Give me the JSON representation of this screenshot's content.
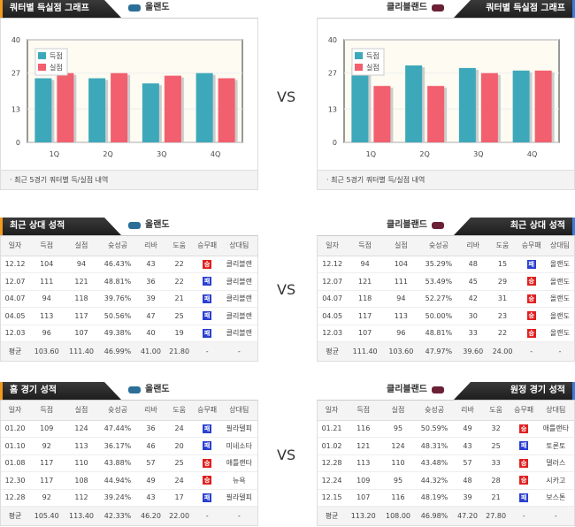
{
  "vs": "VS",
  "legend": {
    "score": "득점",
    "allowed": "실점"
  },
  "colors": {
    "score": "#3ea8bb",
    "allowed": "#f25f6e"
  },
  "columns": [
    "일자",
    "득점",
    "실점",
    "슛성공",
    "리바",
    "도움",
    "승무패",
    "상대팀"
  ],
  "result_labels": {
    "W": "승",
    "L": "패"
  },
  "avg_dash": "-",
  "left": {
    "team": "올랜도",
    "chart": {
      "title": "쿼터별 득실점 그래프",
      "caption": "· 최근 5경기 쿼터별 득/실점 내역"
    },
    "recent": {
      "title": "최근 상대 성적",
      "rows": [
        [
          "12.12",
          "104",
          "94",
          "46.43%",
          "43",
          "22",
          "W",
          "클리블랜"
        ],
        [
          "12.07",
          "111",
          "121",
          "48.81%",
          "36",
          "22",
          "L",
          "클리블랜"
        ],
        [
          "04.07",
          "94",
          "118",
          "39.76%",
          "39",
          "21",
          "L",
          "클리블랜"
        ],
        [
          "04.05",
          "113",
          "117",
          "50.56%",
          "47",
          "25",
          "L",
          "클리블랜"
        ],
        [
          "12.03",
          "96",
          "107",
          "49.38%",
          "40",
          "19",
          "L",
          "클리블랜"
        ]
      ],
      "avg": [
        "평균",
        "103.60",
        "111.40",
        "46.99%",
        "41.00",
        "21.80"
      ]
    },
    "games": {
      "title": "홈 경기 성적",
      "rows": [
        [
          "01.20",
          "109",
          "124",
          "47.44%",
          "36",
          "24",
          "L",
          "필라델피"
        ],
        [
          "01.10",
          "92",
          "113",
          "36.17%",
          "46",
          "20",
          "L",
          "미네소타"
        ],
        [
          "01.08",
          "117",
          "110",
          "43.88%",
          "57",
          "25",
          "W",
          "애틀랜타"
        ],
        [
          "12.30",
          "117",
          "108",
          "44.94%",
          "49",
          "24",
          "W",
          "뉴욕"
        ],
        [
          "12.28",
          "92",
          "112",
          "39.24%",
          "43",
          "17",
          "L",
          "필라델피"
        ]
      ],
      "avg": [
        "평균",
        "105.40",
        "113.40",
        "42.33%",
        "46.20",
        "22.00"
      ]
    }
  },
  "right": {
    "team": "클리블랜드",
    "chart": {
      "title": "쿼터별 득실점 그래프",
      "caption": "· 최근 5경기 쿼터별 득/실점 내역"
    },
    "recent": {
      "title": "최근 상대 성적",
      "rows": [
        [
          "12.12",
          "94",
          "104",
          "35.29%",
          "48",
          "15",
          "L",
          "올랜도"
        ],
        [
          "12.07",
          "121",
          "111",
          "53.49%",
          "45",
          "29",
          "W",
          "올랜도"
        ],
        [
          "04.07",
          "118",
          "94",
          "52.27%",
          "42",
          "31",
          "W",
          "올랜도"
        ],
        [
          "04.05",
          "117",
          "113",
          "50.00%",
          "30",
          "23",
          "W",
          "올랜도"
        ],
        [
          "12.03",
          "107",
          "96",
          "48.81%",
          "33",
          "22",
          "W",
          "올랜도"
        ]
      ],
      "avg": [
        "평균",
        "111.40",
        "103.60",
        "47.97%",
        "39.60",
        "24.00"
      ]
    },
    "games": {
      "title": "원정 경기 성적",
      "rows": [
        [
          "01.21",
          "116",
          "95",
          "50.59%",
          "49",
          "32",
          "W",
          "애틀랜타"
        ],
        [
          "01.02",
          "121",
          "124",
          "48.31%",
          "43",
          "25",
          "L",
          "토론토"
        ],
        [
          "12.28",
          "113",
          "110",
          "43.48%",
          "57",
          "33",
          "W",
          "댈러스"
        ],
        [
          "12.24",
          "109",
          "95",
          "44.32%",
          "48",
          "28",
          "W",
          "시카고"
        ],
        [
          "12.15",
          "107",
          "116",
          "48.19%",
          "39",
          "21",
          "L",
          "보스톤"
        ]
      ],
      "avg": [
        "평균",
        "113.20",
        "108.00",
        "46.98%",
        "47.20",
        "27.80"
      ]
    }
  },
  "chart_data": [
    {
      "type": "bar",
      "title": "쿼터별 득실점 그래프 - 올랜도",
      "categories": [
        "1Q",
        "2Q",
        "3Q",
        "4Q"
      ],
      "ylim": [
        0,
        40
      ],
      "yticks": [
        0,
        13,
        27,
        40
      ],
      "legend": "top-left",
      "series": [
        {
          "name": "득점",
          "values": [
            25,
            25,
            23,
            27
          ]
        },
        {
          "name": "실점",
          "values": [
            27,
            27,
            26,
            25
          ]
        }
      ]
    },
    {
      "type": "bar",
      "title": "쿼터별 득실점 그래프 - 클리블랜드",
      "categories": [
        "1Q",
        "2Q",
        "3Q",
        "4Q"
      ],
      "ylim": [
        0,
        40
      ],
      "yticks": [
        0,
        13,
        27,
        40
      ],
      "legend": "top-left",
      "series": [
        {
          "name": "득점",
          "values": [
            30,
            30,
            29,
            28
          ]
        },
        {
          "name": "실점",
          "values": [
            22,
            22,
            27,
            28
          ]
        }
      ]
    }
  ]
}
